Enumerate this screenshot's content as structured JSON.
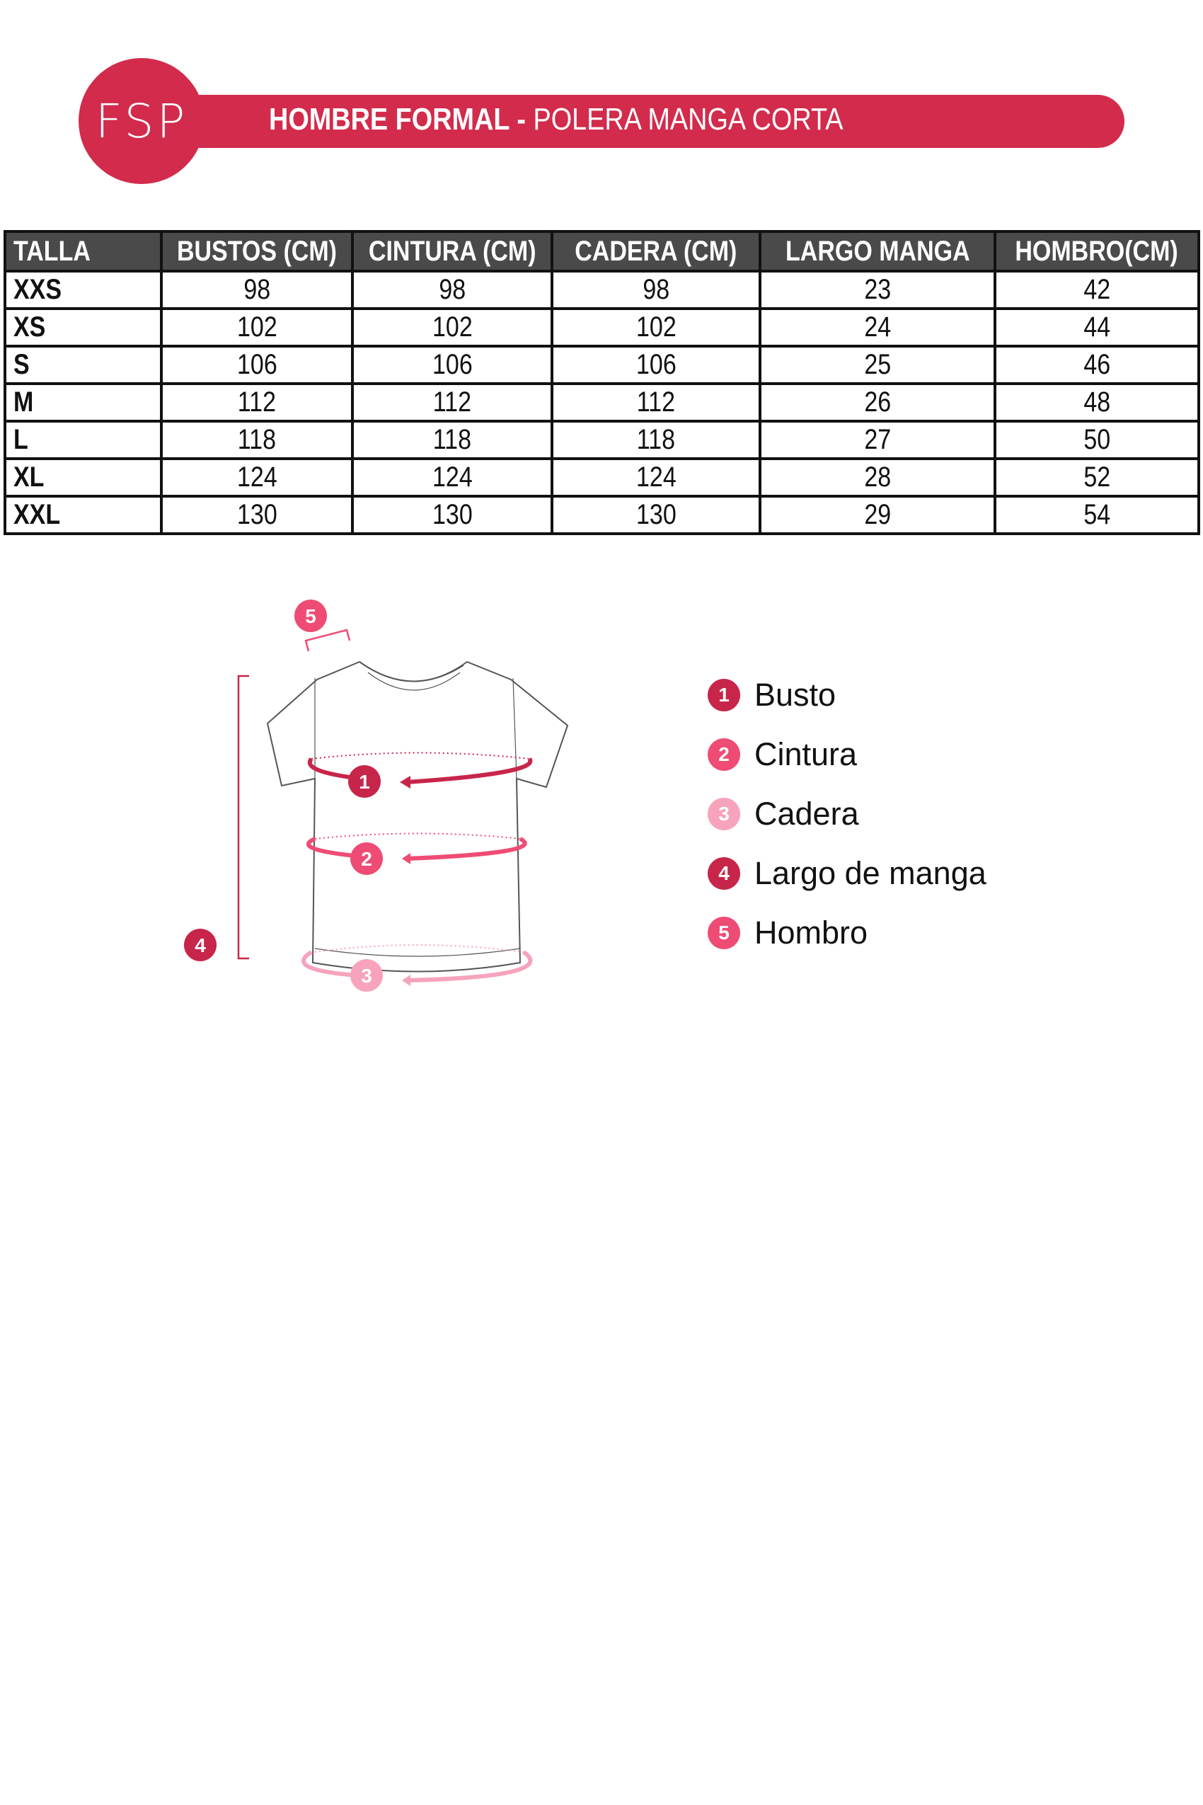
{
  "header": {
    "logo": "FSP",
    "title_bold": "HOMBRE FORMAL - ",
    "title_regular": "POLERA MANGA CORTA",
    "color": "#d22b4c"
  },
  "table": {
    "columns": [
      "TALLA",
      "BUSTOS (CM)",
      "CINTURA (CM)",
      "CADERA (CM)",
      "LARGO MANGA",
      "HOMBRO(CM)"
    ],
    "rows": [
      [
        "XXS",
        "98",
        "98",
        "98",
        "23",
        "42"
      ],
      [
        "XS",
        "102",
        "102",
        "102",
        "24",
        "44"
      ],
      [
        "S",
        "106",
        "106",
        "106",
        "25",
        "46"
      ],
      [
        "M",
        "112",
        "112",
        "112",
        "26",
        "48"
      ],
      [
        "L",
        "118",
        "118",
        "118",
        "27",
        "50"
      ],
      [
        "XL",
        "124",
        "124",
        "124",
        "28",
        "52"
      ],
      [
        "XXL",
        "130",
        "130",
        "130",
        "29",
        "54"
      ]
    ]
  },
  "diagram": {
    "markers": [
      "1",
      "2",
      "3",
      "4",
      "5"
    ]
  },
  "legend": [
    {
      "num": "1",
      "label": "Busto",
      "color": "#c8254a"
    },
    {
      "num": "2",
      "label": "Cintura",
      "color": "#ee4c74"
    },
    {
      "num": "3",
      "label": "Cadera",
      "color": "#f6a3bb"
    },
    {
      "num": "4",
      "label": "Largo de manga",
      "color": "#c8254a"
    },
    {
      "num": "5",
      "label": "Hombro",
      "color": "#ee4c74"
    }
  ]
}
